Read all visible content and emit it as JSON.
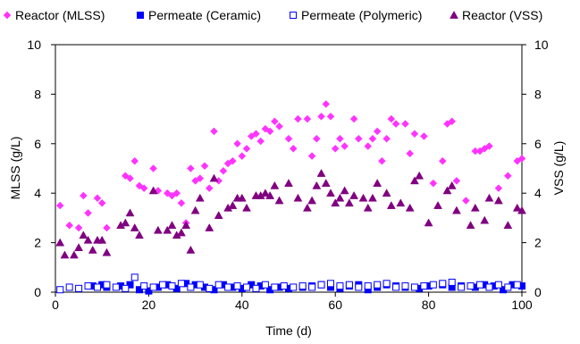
{
  "chart_data": {
    "type": "scatter",
    "xlabel": "Time (d)",
    "ylabel": "MLSS (g/L)",
    "ylabel_right": "VSS (g/L)",
    "xlim": [
      0,
      100
    ],
    "ylim": [
      0,
      10
    ],
    "ylim_right": [
      0,
      10
    ],
    "xticks": [
      "0",
      "20",
      "40",
      "60",
      "80",
      "100"
    ],
    "yticks": [
      "0",
      "2",
      "4",
      "6",
      "8",
      "10"
    ],
    "yticks_right": [
      "0",
      "2",
      "4",
      "6",
      "8",
      "10"
    ],
    "grid": false,
    "legend_position": "top",
    "series": [
      {
        "name": "Reactor (MLSS)",
        "marker": "diamond",
        "color": "#ff33ff",
        "axis": "left",
        "x": [
          1,
          3,
          5,
          6,
          7,
          9,
          10,
          11,
          15,
          16,
          17,
          18,
          19,
          21,
          22,
          24,
          25,
          26,
          27,
          28,
          29,
          30,
          31,
          32,
          33,
          34,
          35,
          36,
          37,
          38,
          39,
          40,
          41,
          42,
          43,
          44,
          45,
          46,
          47,
          48,
          50,
          51,
          52,
          54,
          55,
          56,
          57,
          58,
          59,
          60,
          61,
          62,
          64,
          65,
          67,
          68,
          69,
          70,
          71,
          72,
          73,
          75,
          76,
          77,
          79,
          81,
          83,
          84,
          85,
          86,
          88,
          90,
          91,
          92,
          93,
          95,
          97,
          99,
          100
        ],
        "y": [
          3.5,
          2.7,
          2.6,
          3.9,
          3.2,
          3.8,
          3.6,
          2.6,
          4.7,
          4.6,
          5.3,
          4.3,
          4.2,
          5.0,
          4.1,
          4.0,
          3.9,
          4.0,
          3.6,
          2.8,
          5.0,
          4.5,
          4.6,
          5.1,
          4.2,
          6.5,
          4.5,
          4.9,
          5.2,
          5.3,
          6.0,
          5.5,
          5.8,
          6.3,
          6.4,
          6.1,
          6.6,
          6.5,
          6.9,
          6.7,
          6.2,
          5.8,
          7.0,
          7.0,
          5.5,
          6.2,
          7.1,
          7.6,
          7.1,
          5.8,
          6.2,
          5.9,
          7.0,
          6.2,
          5.9,
          6.2,
          6.5,
          5.3,
          6.2,
          7.0,
          6.8,
          6.8,
          5.6,
          6.4,
          6.3,
          4.4,
          5.3,
          6.8,
          6.9,
          4.5,
          3.7,
          5.7,
          5.7,
          5.8,
          5.9,
          4.2,
          4.7,
          5.3,
          5.4
        ]
      },
      {
        "name": "Permeate (Ceramic)",
        "marker": "filled-square",
        "color": "#0000ff",
        "axis": "left",
        "x": [
          8,
          10,
          11,
          14,
          16,
          18,
          20,
          22,
          24,
          26,
          28,
          30,
          32,
          34,
          36,
          38,
          40,
          42,
          44,
          46,
          48,
          50,
          53,
          55,
          57,
          59,
          61,
          63,
          65,
          67,
          69,
          71,
          73,
          75,
          78,
          80,
          83,
          85,
          87,
          90,
          92,
          94,
          96,
          98,
          100
        ],
        "y": [
          0.25,
          0.3,
          0.2,
          0.25,
          0.3,
          0.1,
          0.05,
          0.2,
          0.3,
          0.15,
          0.35,
          0.3,
          0.2,
          0.1,
          0.3,
          0.2,
          0.15,
          0.3,
          0.25,
          0.1,
          0.2,
          0.15,
          0.2,
          0.25,
          0.3,
          0.2,
          0.15,
          0.25,
          0.3,
          0.1,
          0.2,
          0.3,
          0.25,
          0.2,
          0.15,
          0.25,
          0.3,
          0.2,
          0.25,
          0.2,
          0.3,
          0.25,
          0.1,
          0.3,
          0.25
        ]
      },
      {
        "name": "Permeate (Polymeric)",
        "marker": "open-square",
        "color": "#0000ff",
        "axis": "left",
        "x": [
          1,
          3,
          5,
          7,
          9,
          11,
          13,
          15,
          17,
          19,
          21,
          23,
          25,
          27,
          29,
          31,
          33,
          35,
          37,
          39,
          41,
          43,
          45,
          47,
          49,
          51,
          53,
          55,
          57,
          59,
          61,
          63,
          65,
          67,
          69,
          71,
          73,
          75,
          77,
          79,
          81,
          83,
          85,
          87,
          89,
          91,
          93,
          95,
          97,
          99
        ],
        "y": [
          0.1,
          0.2,
          0.15,
          0.25,
          0.2,
          0.3,
          0.2,
          0.15,
          0.6,
          0.25,
          0.2,
          0.3,
          0.25,
          0.35,
          0.2,
          0.3,
          0.15,
          0.3,
          0.2,
          0.25,
          0.2,
          0.15,
          0.3,
          0.2,
          0.25,
          0.2,
          0.25,
          0.2,
          0.3,
          0.35,
          0.25,
          0.3,
          0.2,
          0.25,
          0.3,
          0.35,
          0.2,
          0.25,
          0.2,
          0.25,
          0.3,
          0.35,
          0.4,
          0.2,
          0.25,
          0.3,
          0.2,
          0.3,
          0.2,
          0.3
        ]
      },
      {
        "name": "Reactor (VSS)",
        "marker": "triangle",
        "color": "#800080",
        "axis": "right",
        "x": [
          1,
          2,
          4,
          5,
          6,
          7,
          8,
          9,
          10,
          11,
          14,
          15,
          16,
          17,
          18,
          21,
          22,
          24,
          25,
          26,
          27,
          28,
          29,
          30,
          31,
          33,
          34,
          35,
          37,
          38,
          39,
          40,
          41,
          43,
          44,
          45,
          46,
          47,
          48,
          50,
          52,
          54,
          55,
          56,
          57,
          58,
          59,
          60,
          61,
          62,
          63,
          64,
          66,
          67,
          68,
          69,
          71,
          72,
          74,
          76,
          77,
          78,
          80,
          82,
          84,
          85,
          86,
          89,
          90,
          92,
          93,
          95,
          97,
          99,
          100
        ],
        "y": [
          2.0,
          1.5,
          1.5,
          1.8,
          2.3,
          2.1,
          1.7,
          2.1,
          2.1,
          1.6,
          2.7,
          2.8,
          3.2,
          2.6,
          2.3,
          4.1,
          2.5,
          2.5,
          2.7,
          2.3,
          2.4,
          2.7,
          1.7,
          3.3,
          3.8,
          2.6,
          4.6,
          3.1,
          3.4,
          3.5,
          3.8,
          3.8,
          3.4,
          3.9,
          3.9,
          4.0,
          3.9,
          4.3,
          3.7,
          4.4,
          3.8,
          3.4,
          3.7,
          4.3,
          4.8,
          4.4,
          4.0,
          3.6,
          3.8,
          4.1,
          3.6,
          3.9,
          3.8,
          3.4,
          3.8,
          4.4,
          4.0,
          3.5,
          3.6,
          3.4,
          4.5,
          4.7,
          2.8,
          3.5,
          4.1,
          4.3,
          3.3,
          2.7,
          3.4,
          2.9,
          3.8,
          3.7,
          2.7,
          3.4,
          3.3
        ]
      }
    ]
  }
}
